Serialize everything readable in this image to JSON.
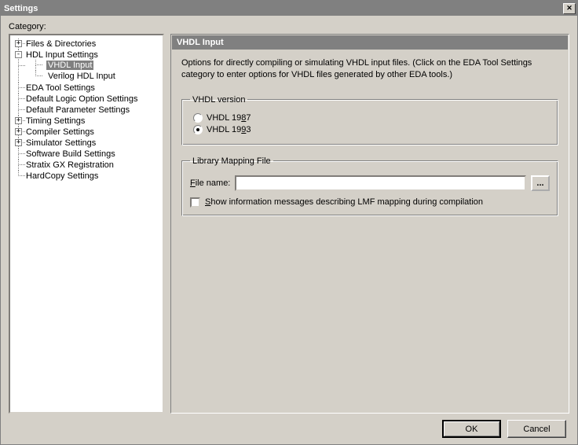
{
  "colors": {
    "window_bg": "#d4d0c8",
    "titlebar_bg": "#808080",
    "titlebar_fg": "#ffffff",
    "panel_header_bg": "#808080",
    "panel_header_fg": "#ffffff",
    "selection_bg": "#808080",
    "selection_fg": "#ffffff",
    "tree_line": "#808080"
  },
  "window": {
    "title": "Settings",
    "close_glyph": "✕",
    "category_label": "Category:"
  },
  "tree": {
    "items": [
      {
        "label": "Files & Directories",
        "toggle": "+"
      },
      {
        "label": "HDL Input Settings",
        "toggle": "-",
        "children": [
          {
            "label": "VHDL Input",
            "selected": true
          },
          {
            "label": "Verilog HDL Input"
          }
        ]
      },
      {
        "label": "EDA Tool Settings"
      },
      {
        "label": "Default Logic Option Settings"
      },
      {
        "label": "Default Parameter Settings"
      },
      {
        "label": "Timing Settings",
        "toggle": "+"
      },
      {
        "label": "Compiler Settings",
        "toggle": "+"
      },
      {
        "label": "Simulator Settings",
        "toggle": "+"
      },
      {
        "label": "Software Build Settings"
      },
      {
        "label": "Stratix GX Registration"
      },
      {
        "label": "HardCopy Settings"
      }
    ]
  },
  "panel": {
    "title": "VHDL Input",
    "description": "Options for directly compiling or simulating VHDL input files.  (Click on the EDA Tool Settings category to enter options for VHDL files generated by other EDA tools.)",
    "version_group": {
      "legend": "VHDL version",
      "options": [
        {
          "label_pre": "VHDL 19",
          "key": "8",
          "label_post": "7",
          "checked": false
        },
        {
          "label_pre": "VHDL 19",
          "key": "9",
          "label_post": "3",
          "checked": true
        }
      ]
    },
    "library_group": {
      "legend": "Library Mapping File",
      "file_label_pre": "",
      "file_label_key": "F",
      "file_label_post": "ile name:",
      "file_value": "",
      "browse_label": "...",
      "checkbox_checked": false,
      "checkbox_pre": "",
      "checkbox_key": "S",
      "checkbox_post": "how information messages describing LMF mapping during compilation"
    }
  },
  "buttons": {
    "ok": "OK",
    "cancel": "Cancel"
  }
}
